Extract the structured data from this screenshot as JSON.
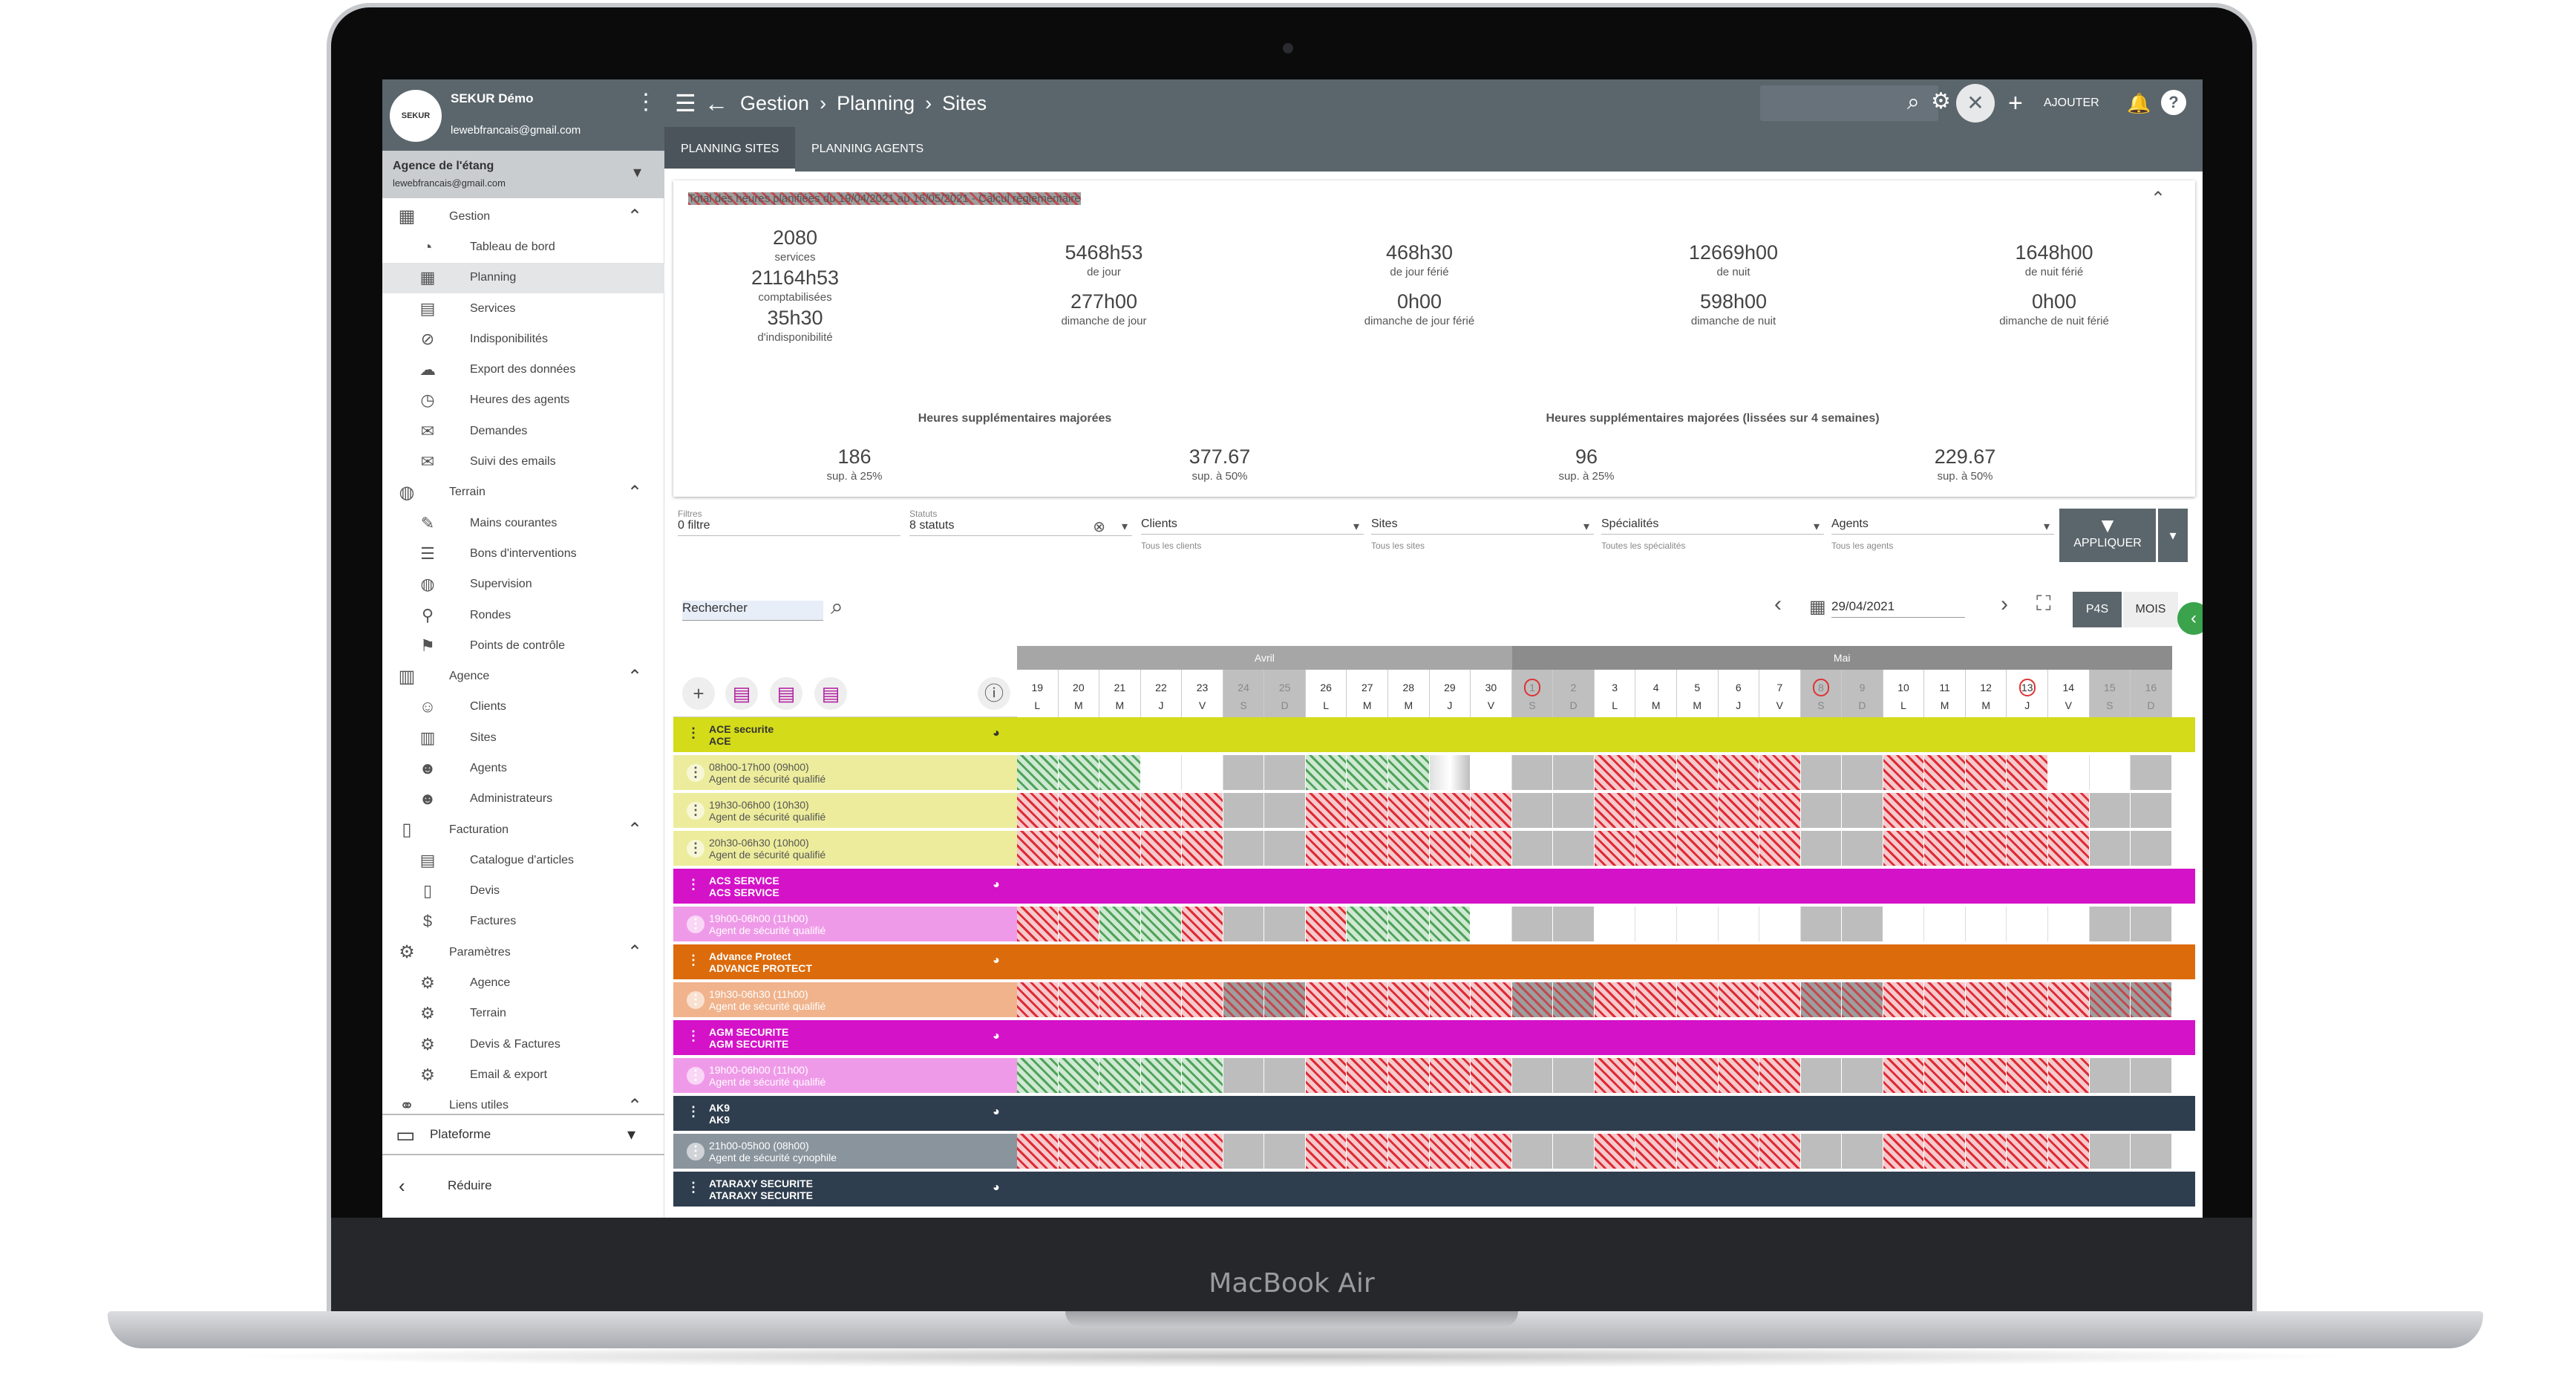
{
  "device": {
    "brand": "MacBook Air"
  },
  "sidebar": {
    "user": {
      "avatar": "SEKUR",
      "name": "SEKUR Démo",
      "email": "lewebfrancais@gmail.com"
    },
    "agency": {
      "name": "Agence de l'étang",
      "email": "lewebfrancais@gmail.com"
    },
    "items": [
      {
        "type": "section",
        "label": "Gestion",
        "icon": "calendar-icon",
        "glyph": "▦",
        "open": true
      },
      {
        "type": "item",
        "label": "Tableau de bord",
        "icon": "dashboard-icon",
        "glyph": "◔"
      },
      {
        "type": "item",
        "label": "Planning",
        "icon": "calendar-icon",
        "glyph": "▦",
        "active": true
      },
      {
        "type": "item",
        "label": "Services",
        "icon": "clipboard-icon",
        "glyph": "▤"
      },
      {
        "type": "item",
        "label": "Indisponibilités",
        "icon": "user-off-icon",
        "glyph": "⊘"
      },
      {
        "type": "item",
        "label": "Export des données",
        "icon": "cloud-download-icon",
        "glyph": "☁"
      },
      {
        "type": "item",
        "label": "Heures des agents",
        "icon": "user-clock-icon",
        "glyph": "◷"
      },
      {
        "type": "item",
        "label": "Demandes",
        "icon": "chat-icon",
        "glyph": "✉"
      },
      {
        "type": "item",
        "label": "Suivi des emails",
        "icon": "mail-icon",
        "glyph": "✉"
      },
      {
        "type": "section",
        "label": "Terrain",
        "icon": "globe-icon",
        "glyph": "◍",
        "open": true
      },
      {
        "type": "item",
        "label": "Mains courantes",
        "icon": "pen-icon",
        "glyph": "✎"
      },
      {
        "type": "item",
        "label": "Bons d'interventions",
        "icon": "checklist-icon",
        "glyph": "☰"
      },
      {
        "type": "item",
        "label": "Supervision",
        "icon": "globe-icon",
        "glyph": "◍"
      },
      {
        "type": "item",
        "label": "Rondes",
        "icon": "route-icon",
        "glyph": "⚲"
      },
      {
        "type": "item",
        "label": "Points de contrôle",
        "icon": "map-pin-icon",
        "glyph": "⚑"
      },
      {
        "type": "section",
        "label": "Agence",
        "icon": "building-icon",
        "glyph": "▥",
        "open": true
      },
      {
        "type": "item",
        "label": "Clients",
        "icon": "user-tie-icon",
        "glyph": "☺"
      },
      {
        "type": "item",
        "label": "Sites",
        "icon": "building-icon",
        "glyph": "▥"
      },
      {
        "type": "item",
        "label": "Agents",
        "icon": "user-shield-icon",
        "glyph": "☻"
      },
      {
        "type": "item",
        "label": "Administrateurs",
        "icon": "users-cog-icon",
        "glyph": "☻"
      },
      {
        "type": "section",
        "label": "Facturation",
        "icon": "file-icon",
        "glyph": "▯",
        "open": true
      },
      {
        "type": "item",
        "label": "Catalogue d'articles",
        "icon": "book-icon",
        "glyph": "▤"
      },
      {
        "type": "item",
        "label": "Devis",
        "icon": "file-icon",
        "glyph": "▯"
      },
      {
        "type": "item",
        "label": "Factures",
        "icon": "invoice-icon",
        "glyph": "$"
      },
      {
        "type": "section",
        "label": "Paramètres",
        "icon": "cogs-icon",
        "glyph": "⚙",
        "open": true
      },
      {
        "type": "item",
        "label": "Agence",
        "icon": "gear-icon",
        "glyph": "⚙"
      },
      {
        "type": "item",
        "label": "Terrain",
        "icon": "gear-icon",
        "glyph": "⚙"
      },
      {
        "type": "item",
        "label": "Devis & Factures",
        "icon": "gear-icon",
        "glyph": "⚙"
      },
      {
        "type": "item",
        "label": "Email & export",
        "icon": "gear-icon",
        "glyph": "⚙"
      },
      {
        "type": "section",
        "label": "Liens utiles",
        "icon": "link-icon",
        "glyph": "⚭",
        "open": true
      }
    ],
    "platform": "Plateforme",
    "collapse": "Réduire"
  },
  "topbar": {
    "breadcrumb": [
      "Gestion",
      "Planning",
      "Sites"
    ],
    "add_label": "AJOUTER"
  },
  "tabs": [
    {
      "label": "PLANNING SITES",
      "active": true
    },
    {
      "label": "PLANNING AGENTS",
      "active": false
    }
  ],
  "summary": {
    "title": "Total des heures planifiées du 19/04/2021 au 16/05/2021 - Calcul réglementaire",
    "col1": [
      {
        "v": "2080",
        "l": "services"
      },
      {
        "v": "21164h53",
        "l": "comptabilisées"
      },
      {
        "v": "35h30",
        "l": "d'indisponibilité"
      }
    ],
    "cols": [
      [
        {
          "v": "5468h53",
          "l": "de jour"
        },
        {
          "v": "277h00",
          "l": "dimanche de jour"
        }
      ],
      [
        {
          "v": "468h30",
          "l": "de jour férié"
        },
        {
          "v": "0h00",
          "l": "dimanche de jour férié"
        }
      ],
      [
        {
          "v": "12669h00",
          "l": "de nuit"
        },
        {
          "v": "598h00",
          "l": "dimanche de nuit"
        }
      ],
      [
        {
          "v": "1648h00",
          "l": "de nuit férié"
        },
        {
          "v": "0h00",
          "l": "dimanche de nuit férié"
        }
      ]
    ],
    "overtime_title": "Heures supplémentaires majorées",
    "overtime_smoothed_title": "Heures supplémentaires majorées (lissées sur 4 semaines)",
    "overtime": [
      {
        "v": "186",
        "l": "sup. à 25%"
      },
      {
        "v": "377.67",
        "l": "sup. à 50%"
      },
      {
        "v": "96",
        "l": "sup. à 25%"
      },
      {
        "v": "229.67",
        "l": "sup. à 50%"
      }
    ]
  },
  "filters": {
    "filtres": {
      "label": "Filtres",
      "value": "0 filtre"
    },
    "statuts": {
      "label": "Statuts",
      "value": "8 statuts"
    },
    "selects": [
      {
        "value": "Clients",
        "sub": "Tous les clients"
      },
      {
        "value": "Sites",
        "sub": "Tous les sites"
      },
      {
        "value": "Spécialités",
        "sub": "Toutes les spécialités"
      },
      {
        "value": "Agents",
        "sub": "Tous les agents"
      }
    ],
    "apply": "APPLIQUER"
  },
  "toolbar": {
    "search_placeholder": "Rechercher",
    "date": "29/04/2021",
    "view_p4s": "P4S",
    "view_mois": "MOIS"
  },
  "calendar": {
    "months": [
      {
        "label": "Avril",
        "span": 12
      },
      {
        "label": "Mai",
        "span": 16
      }
    ],
    "days": [
      {
        "n": "19",
        "d": "L"
      },
      {
        "n": "20",
        "d": "M"
      },
      {
        "n": "21",
        "d": "M"
      },
      {
        "n": "22",
        "d": "J"
      },
      {
        "n": "23",
        "d": "V"
      },
      {
        "n": "24",
        "d": "S",
        "we": true
      },
      {
        "n": "25",
        "d": "D",
        "we": true
      },
      {
        "n": "26",
        "d": "L"
      },
      {
        "n": "27",
        "d": "M"
      },
      {
        "n": "28",
        "d": "M"
      },
      {
        "n": "29",
        "d": "J"
      },
      {
        "n": "30",
        "d": "V"
      },
      {
        "n": "1",
        "d": "S",
        "we": true,
        "holiday": true
      },
      {
        "n": "2",
        "d": "D",
        "we": true
      },
      {
        "n": "3",
        "d": "L"
      },
      {
        "n": "4",
        "d": "M"
      },
      {
        "n": "5",
        "d": "M"
      },
      {
        "n": "6",
        "d": "J"
      },
      {
        "n": "7",
        "d": "V"
      },
      {
        "n": "8",
        "d": "S",
        "we": true,
        "holiday": true
      },
      {
        "n": "9",
        "d": "D",
        "we": true
      },
      {
        "n": "10",
        "d": "L"
      },
      {
        "n": "11",
        "d": "M"
      },
      {
        "n": "12",
        "d": "M"
      },
      {
        "n": "13",
        "d": "J",
        "holiday": true
      },
      {
        "n": "14",
        "d": "V"
      },
      {
        "n": "15",
        "d": "S",
        "we": true
      },
      {
        "n": "16",
        "d": "D",
        "we": true
      }
    ],
    "rows": [
      {
        "kind": "site",
        "l1": "ACE securite",
        "l2": "ACE",
        "bg": "#d4db19",
        "fg": "#333"
      },
      {
        "kind": "svc",
        "l1": "08h00-17h00 (09h00)",
        "l2": "Agent de sécurité qualifié",
        "bg": "#ecec9c",
        "fg": "#555",
        "pat": "GGGWWDDGGGSWDDHHHHHDDHHHHWWD"
      },
      {
        "kind": "svc",
        "l1": "19h30-06h00 (10h30)",
        "l2": "Agent de sécurité qualifié",
        "bg": "#ecec9c",
        "fg": "#555",
        "pat": "HHHHHDDHHHHHDDHHHHHDDHHHHHDD"
      },
      {
        "kind": "svc",
        "l1": "20h30-06h30 (10h00)",
        "l2": "Agent de sécurité qualifié",
        "bg": "#ecec9c",
        "fg": "#555",
        "pat": "HHHHHDDHHHHHDDHHHHHDDHHHHHDD"
      },
      {
        "kind": "site",
        "l1": "ACS SERVICE",
        "l2": "ACS SERVICE",
        "bg": "#d412c8",
        "fg": "#fff"
      },
      {
        "kind": "svc",
        "l1": "19h00-06h00 (11h00)",
        "l2": "Agent de sécurité qualifié",
        "bg": "#ef9ae8",
        "fg": "#fff",
        "pat": "HHGGHDDHGGGWDDWWWWWDDWWWWWDD"
      },
      {
        "kind": "site",
        "l1": "Advance Protect",
        "l2": "ADVANCE PROTECT",
        "bg": "#dc6b0c",
        "fg": "#fff"
      },
      {
        "kind": "svc",
        "l1": "19h30-06h30 (11h00)",
        "l2": "Agent de sécurité qualifié",
        "bg": "#f0b38c",
        "fg": "#fff",
        "pat": "HHHHHXXHHHHHXXHHHHHXXHHHHHXX"
      },
      {
        "kind": "site",
        "l1": "AGM SECURITE",
        "l2": "AGM SECURITE",
        "bg": "#d412c8",
        "fg": "#fff"
      },
      {
        "kind": "svc",
        "l1": "19h00-06h00 (11h00)",
        "l2": "Agent de sécurité qualifié",
        "bg": "#ef9ae8",
        "fg": "#fff",
        "pat": "GGGGGDDHHHHHDDHHHHHDDHHHHHDD"
      },
      {
        "kind": "site",
        "l1": "AK9",
        "l2": "AK9",
        "bg": "#2f3e4e",
        "fg": "#fff"
      },
      {
        "kind": "svc",
        "l1": "21h00-05h00 (08h00)",
        "l2": "Agent de sécurité cynophile",
        "bg": "#8a949d",
        "fg": "#fff",
        "pat": "HHHHHDDHHHHHDDHHHHHDDHHHHHDD"
      },
      {
        "kind": "site",
        "l1": "ATARAXY SECURITE",
        "l2": "ATARAXY SECURITE",
        "bg": "#2f3e4e",
        "fg": "#fff"
      }
    ]
  }
}
